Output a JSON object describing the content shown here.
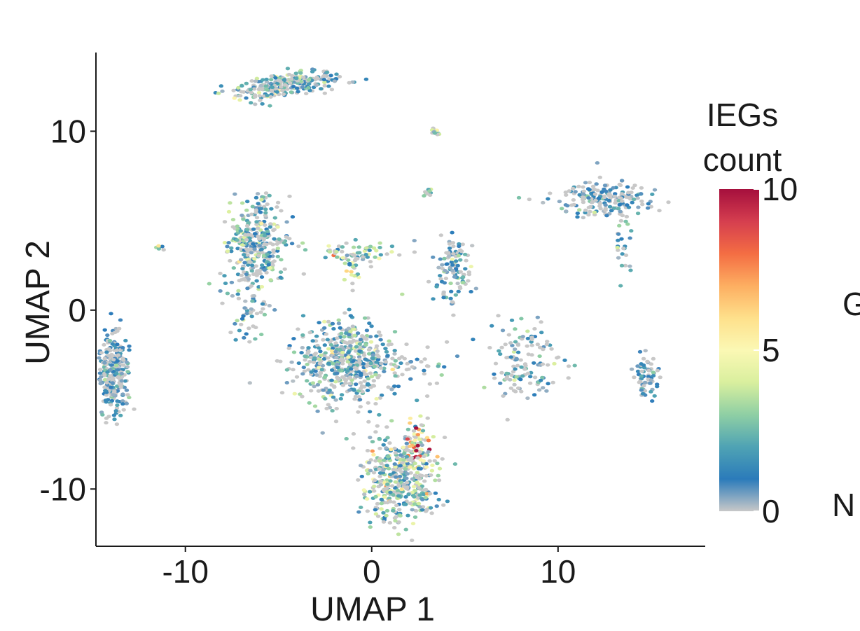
{
  "chart_data": {
    "type": "scatter",
    "xlabel": "UMAP 1",
    "ylabel": "UMAP 2",
    "xlim": [
      -14.8,
      17.9
    ],
    "ylim": [
      -13.2,
      14.4
    ],
    "x_ticks": [
      -10,
      0,
      10
    ],
    "x_tick_labels": [
      "-10",
      "0",
      "10"
    ],
    "y_ticks": [
      -10,
      0,
      10
    ],
    "y_tick_labels": [
      "-10",
      "0",
      "10"
    ],
    "grid": false,
    "color_scale": {
      "title_lines": [
        "IEGs",
        "count"
      ],
      "min": 0,
      "max": 10,
      "ticks": [
        0,
        5,
        10
      ],
      "tick_labels": [
        "0",
        "5",
        "10"
      ],
      "colors": [
        "#c8c8c8",
        "#2b7bba",
        "#4fa3b4",
        "#8fcfa4",
        "#d9ef9e",
        "#fbf8b4",
        "#fee08b",
        "#fdae61",
        "#f46d43",
        "#d53e4f",
        "#a50f3d"
      ]
    },
    "clusters": [
      {
        "cx": -4.5,
        "cy": 12.6,
        "sx": 1.5,
        "sy": 0.35,
        "n": 260,
        "tilt": 0.14,
        "mean_count": 1.3
      },
      {
        "cx": 3.4,
        "cy": 9.9,
        "sx": 0.12,
        "sy": 0.2,
        "n": 15,
        "tilt": 0,
        "mean_count": 2.0
      },
      {
        "cx": 3.0,
        "cy": 6.6,
        "sx": 0.18,
        "sy": 0.12,
        "n": 10,
        "tilt": 0,
        "mean_count": 2.0
      },
      {
        "cx": 12.4,
        "cy": 6.3,
        "sx": 1.2,
        "sy": 0.5,
        "n": 200,
        "tilt": 0.05,
        "mean_count": 0.6
      },
      {
        "cx": 13.6,
        "cy": 3.6,
        "sx": 0.25,
        "sy": 0.8,
        "n": 25,
        "tilt": 0,
        "mean_count": 1.0
      },
      {
        "cx": -6.3,
        "cy": 3.6,
        "sx": 0.8,
        "sy": 1.3,
        "n": 340,
        "tilt": 0,
        "mean_count": 1.6
      },
      {
        "cx": -6.6,
        "cy": -0.4,
        "sx": 0.5,
        "sy": 0.6,
        "n": 35,
        "tilt": 0,
        "mean_count": 1.4
      },
      {
        "cx": -11.4,
        "cy": 3.5,
        "sx": 0.1,
        "sy": 0.08,
        "n": 5,
        "tilt": 0,
        "mean_count": 2.5
      },
      {
        "cx": -1.0,
        "cy": 3.2,
        "sx": 1.2,
        "sy": 0.3,
        "n": 60,
        "tilt": 0,
        "mean_count": 2.5
      },
      {
        "cx": -1.0,
        "cy": 2.5,
        "sx": 0.25,
        "sy": 0.5,
        "n": 25,
        "tilt": 0,
        "mean_count": 2.5
      },
      {
        "cx": 4.4,
        "cy": 2.0,
        "sx": 0.5,
        "sy": 0.9,
        "n": 110,
        "tilt": 0,
        "mean_count": 1.2
      },
      {
        "cx": -13.9,
        "cy": -3.4,
        "sx": 0.42,
        "sy": 1.1,
        "n": 300,
        "tilt": 0,
        "mean_count": 0.9
      },
      {
        "cx": -1.5,
        "cy": -2.9,
        "sx": 1.3,
        "sy": 1.2,
        "n": 500,
        "tilt": 0,
        "mean_count": 1.4
      },
      {
        "cx": 1.8,
        "cy": -3.0,
        "sx": 1.4,
        "sy": 0.6,
        "n": 50,
        "tilt": 0.1,
        "mean_count": 1.0
      },
      {
        "cx": 8.2,
        "cy": -3.0,
        "sx": 1.0,
        "sy": 1.1,
        "n": 130,
        "tilt": 0,
        "mean_count": 1.0
      },
      {
        "cx": 14.8,
        "cy": -3.8,
        "sx": 0.3,
        "sy": 0.6,
        "n": 70,
        "tilt": 0,
        "mean_count": 0.7
      },
      {
        "cx": 1.5,
        "cy": -9.5,
        "sx": 1.0,
        "sy": 1.3,
        "n": 420,
        "tilt": 0,
        "mean_count": 2.2
      },
      {
        "cx": 2.4,
        "cy": -7.8,
        "sx": 0.35,
        "sy": 0.6,
        "n": 60,
        "tilt": 0,
        "mean_count": 4.8
      }
    ]
  },
  "right_edge_text": [
    "G",
    "N"
  ]
}
